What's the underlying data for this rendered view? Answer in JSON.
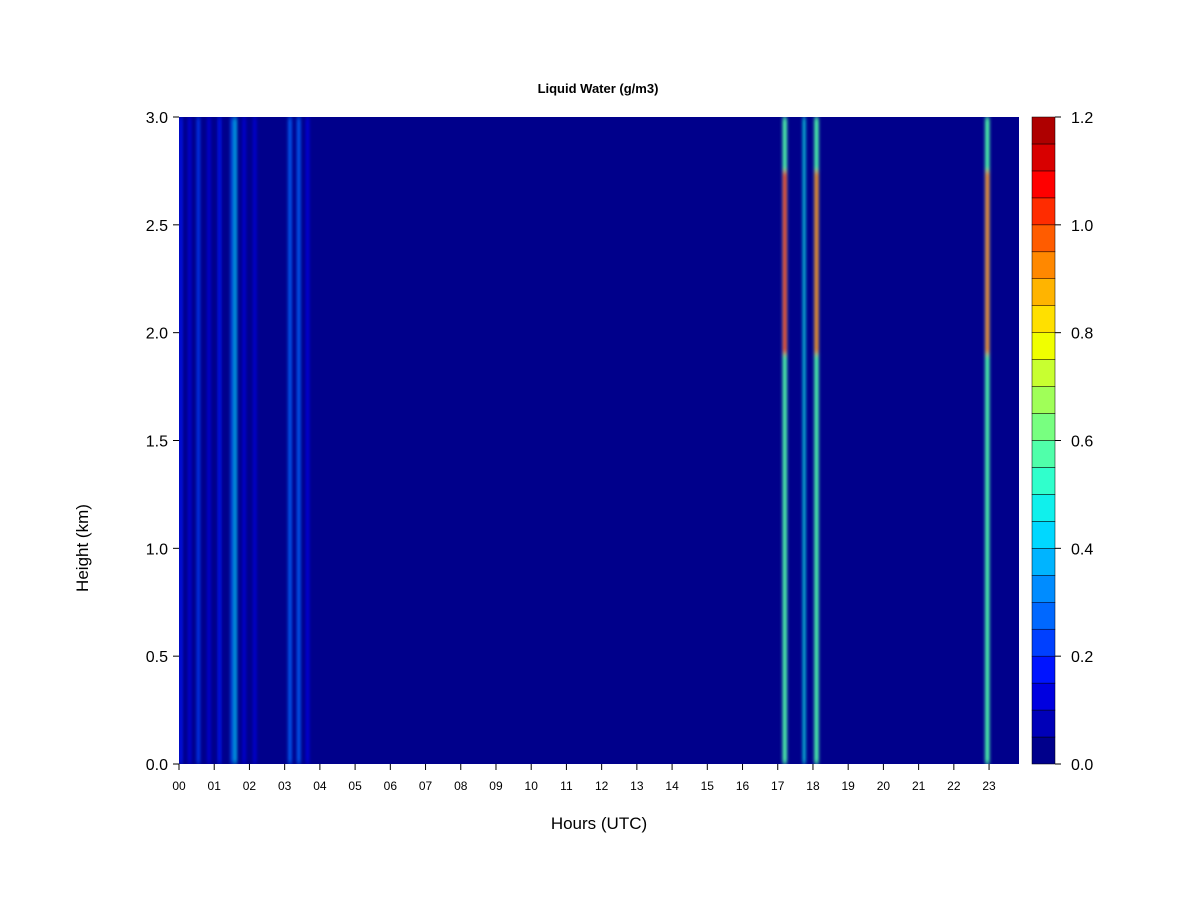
{
  "chart_data": {
    "type": "heatmap",
    "title": "Liquid Water (g/m3)",
    "xlabel": "Hours (UTC)",
    "ylabel": "Height (km)",
    "xlim": [
      0,
      23.85
    ],
    "ylim": [
      0.0,
      3.0
    ],
    "x_ticks": [
      0,
      1,
      2,
      3,
      4,
      5,
      6,
      7,
      8,
      9,
      10,
      11,
      12,
      13,
      14,
      15,
      16,
      17,
      18,
      19,
      20,
      21,
      22,
      23
    ],
    "x_tick_labels": [
      "00",
      "01",
      "02",
      "03",
      "04",
      "05",
      "06",
      "07",
      "08",
      "09",
      "10",
      "11",
      "12",
      "13",
      "14",
      "15",
      "16",
      "17",
      "18",
      "19",
      "20",
      "21",
      "22",
      "23"
    ],
    "y_ticks": [
      0.0,
      0.5,
      1.0,
      1.5,
      2.0,
      2.5,
      3.0
    ],
    "y_tick_labels": [
      "0.0",
      "0.5",
      "1.0",
      "1.5",
      "2.0",
      "2.5",
      "3.0"
    ],
    "background_value": 0.03,
    "colorbar": {
      "min": 0.0,
      "max": 1.2,
      "step": 0.05,
      "tick_values": [
        0.0,
        0.2,
        0.4,
        0.6,
        0.8,
        1.0,
        1.2
      ],
      "tick_labels": [
        "0.0",
        "0.2",
        "0.4",
        "0.6",
        "0.8",
        "1.0",
        "1.2"
      ],
      "colors": [
        "#00008b",
        "#0000b8",
        "#0000e0",
        "#0014ff",
        "#0040ff",
        "#0068ff",
        "#008cff",
        "#00b4ff",
        "#00d8ff",
        "#10f0ec",
        "#30ffcc",
        "#50ffaa",
        "#78ff80",
        "#a0ff58",
        "#c8ff30",
        "#f0ff00",
        "#ffe000",
        "#ffb400",
        "#ff8800",
        "#ff5c00",
        "#ff2c00",
        "#ff0000",
        "#d80000",
        "#ae0000"
      ]
    },
    "cloud_features": [
      {
        "time": 0.05,
        "width": 0.08,
        "base": 0.0,
        "top": 3.0,
        "value": 0.18
      },
      {
        "time": 0.3,
        "width": 0.08,
        "base": 0.0,
        "top": 3.0,
        "value": 0.15
      },
      {
        "time": 0.55,
        "width": 0.08,
        "base": 0.0,
        "top": 3.0,
        "value": 0.2
      },
      {
        "time": 0.85,
        "width": 0.08,
        "base": 0.0,
        "top": 3.0,
        "value": 0.13
      },
      {
        "time": 1.15,
        "width": 0.08,
        "base": 0.0,
        "top": 3.0,
        "value": 0.17
      },
      {
        "time": 1.5,
        "width": 0.06,
        "base": 0.0,
        "top": 3.0,
        "value": 0.25
      },
      {
        "time": 1.6,
        "width": 0.07,
        "base": 0.0,
        "top": 3.0,
        "value": 0.42
      },
      {
        "time": 1.85,
        "width": 0.08,
        "base": 0.0,
        "top": 3.0,
        "value": 0.13
      },
      {
        "time": 2.15,
        "width": 0.08,
        "base": 0.0,
        "top": 3.0,
        "value": 0.12
      },
      {
        "time": 3.15,
        "width": 0.09,
        "base": 0.0,
        "top": 3.0,
        "value": 0.28
      },
      {
        "time": 3.4,
        "width": 0.09,
        "base": 0.0,
        "top": 3.0,
        "value": 0.3
      },
      {
        "time": 3.65,
        "width": 0.09,
        "base": 0.0,
        "top": 3.0,
        "value": 0.15
      },
      {
        "time": 17.2,
        "width": 0.12,
        "base": 0.0,
        "top": 3.0,
        "value": 0.55
      },
      {
        "time": 17.75,
        "width": 0.07,
        "base": 0.0,
        "top": 3.0,
        "value": 0.45
      },
      {
        "time": 18.1,
        "width": 0.12,
        "base": 0.0,
        "top": 3.0,
        "value": 0.55
      },
      {
        "time": 22.95,
        "width": 0.12,
        "base": 0.0,
        "top": 3.0,
        "value": 0.6
      },
      {
        "time": 17.2,
        "width": 0.1,
        "base": 1.9,
        "top": 2.75,
        "value": 1.0
      },
      {
        "time": 18.1,
        "width": 0.1,
        "base": 1.9,
        "top": 2.75,
        "value": 0.9
      },
      {
        "time": 22.95,
        "width": 0.1,
        "base": 1.9,
        "top": 2.75,
        "value": 0.95
      }
    ]
  }
}
